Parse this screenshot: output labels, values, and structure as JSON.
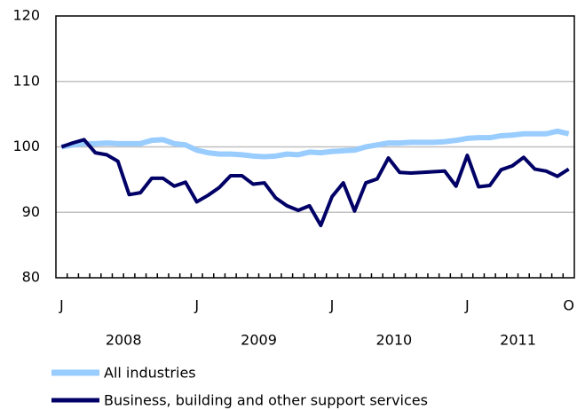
{
  "chart_data": {
    "type": "line",
    "categories": [
      "J",
      null,
      null,
      null,
      null,
      null,
      null,
      null,
      null,
      null,
      null,
      null,
      "J",
      null,
      null,
      null,
      null,
      null,
      null,
      null,
      null,
      null,
      null,
      null,
      "J",
      null,
      null,
      null,
      null,
      null,
      null,
      null,
      null,
      null,
      null,
      null,
      "J",
      null,
      null,
      null,
      null,
      null,
      null,
      null,
      null,
      "O"
    ],
    "year_labels": [
      "2008",
      "2009",
      "2010",
      "2011"
    ],
    "ylim": [
      80,
      120
    ],
    "yticks": [
      80,
      90,
      100,
      110,
      120
    ],
    "grid": true,
    "series": [
      {
        "name": "All industries",
        "color": "#99ccff",
        "values": [
          100,
          100.3,
          100.5,
          100.5,
          100.6,
          100.5,
          100.5,
          100.5,
          101,
          101.1,
          100.5,
          100.3,
          99.5,
          99.1,
          98.9,
          98.9,
          98.8,
          98.6,
          98.5,
          98.6,
          98.9,
          98.8,
          99.2,
          99.1,
          99.3,
          99.4,
          99.5,
          100,
          100.3,
          100.6,
          100.6,
          100.7,
          100.7,
          100.7,
          100.8,
          101,
          101.3,
          101.4,
          101.4,
          101.7,
          101.8,
          102,
          102,
          102,
          102.4,
          102
        ]
      },
      {
        "name": "Business, building and other support services",
        "color": "#000066",
        "values": [
          100,
          100.6,
          101.1,
          99.1,
          98.8,
          97.8,
          92.7,
          93,
          95.2,
          95.2,
          94,
          94.6,
          91.6,
          92.6,
          93.8,
          95.6,
          95.6,
          94.3,
          94.5,
          92.2,
          91,
          90.3,
          91,
          88,
          92.4,
          94.5,
          90.2,
          94.5,
          95.1,
          98.3,
          96.1,
          96,
          96.1,
          96.2,
          96.3,
          94,
          98.7,
          93.9,
          94.1,
          96.5,
          97.1,
          98.4,
          96.6,
          96.3,
          95.5,
          96.6
        ]
      }
    ]
  }
}
